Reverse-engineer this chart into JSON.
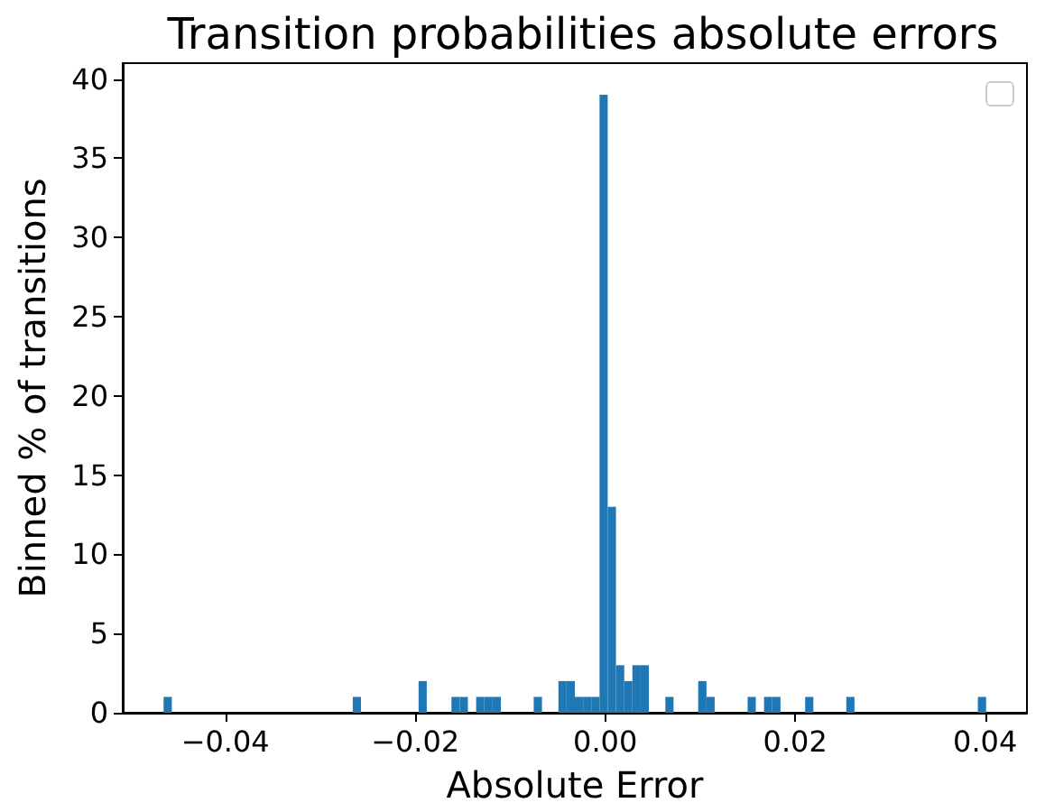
{
  "chart_data": {
    "type": "histogram",
    "title": "Transition probabilities absolute errors",
    "xlabel": "Absolute Error",
    "ylabel": "Binned % of transitions",
    "bins": [
      -0.0465,
      -0.04563,
      -0.02658,
      -0.02572,
      -0.01965,
      -0.01879,
      -0.01619,
      -0.01532,
      -0.01446,
      -0.01359,
      -0.01273,
      -0.01186,
      -0.01099,
      -0.00753,
      -0.00666,
      -0.00493,
      -0.00407,
      -0.0032,
      -0.00233,
      -0.00147,
      -0.0006,
      0.00026,
      0.00113,
      0.002,
      0.00286,
      0.00373,
      0.00459,
      0.00633,
      0.00719,
      0.00979,
      0.01066,
      0.01152,
      0.01499,
      0.01585,
      0.01672,
      0.01758,
      0.01845,
      0.02105,
      0.02191,
      0.02538,
      0.02624,
      0.03923,
      0.0401
    ],
    "values": [
      1,
      0,
      1,
      0,
      2,
      0,
      1,
      1,
      0,
      1,
      1,
      1,
      0,
      1,
      0,
      2,
      2,
      1,
      1,
      1,
      39,
      13,
      3,
      2,
      3,
      3,
      0,
      1,
      0,
      2,
      1,
      0,
      1,
      0,
      1,
      1,
      0,
      1,
      0,
      1,
      0,
      1
    ],
    "color": "#1f77b4",
    "xlim": [
      -0.0508,
      0.0444
    ],
    "xticks": [
      {
        "value": -0.04,
        "label": "−0.04"
      },
      {
        "value": -0.02,
        "label": "−0.02"
      },
      {
        "value": 0,
        "label": "0.00"
      },
      {
        "value": 0.02,
        "label": "0.02"
      },
      {
        "value": 0.04,
        "label": "0.04"
      }
    ],
    "ylim": [
      0,
      41
    ],
    "yticks": [
      0,
      5,
      10,
      15,
      20,
      25,
      30,
      35,
      40
    ],
    "grid": false
  }
}
